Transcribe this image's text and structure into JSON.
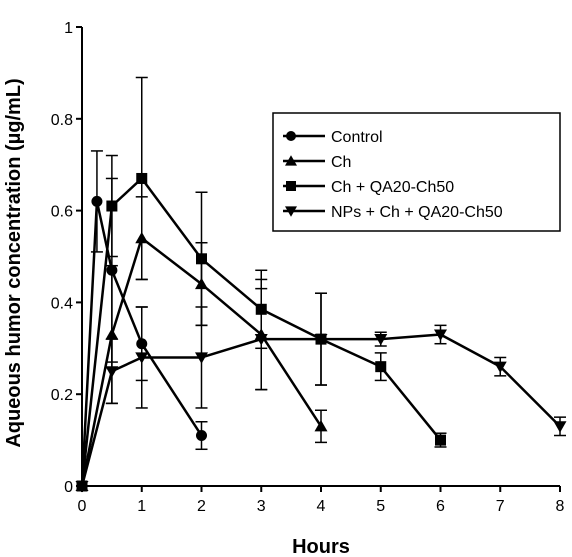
{
  "chart_data": {
    "type": "line",
    "title": "",
    "xlabel": "Hours",
    "ylabel": "Aqueous humor concentration (µg/mL)",
    "xlim": [
      0,
      8
    ],
    "ylim": [
      0,
      1
    ],
    "x_ticks": [
      0,
      1,
      2,
      3,
      4,
      5,
      6,
      7,
      8
    ],
    "y_ticks": [
      0,
      0.2,
      0.4,
      0.6,
      0.8,
      1
    ],
    "x_tick_labels": [
      "0",
      "1",
      "2",
      "3",
      "4",
      "5",
      "6",
      "7",
      "8"
    ],
    "y_tick_labels": [
      "0",
      "0.2",
      "0.4",
      "0.6",
      "0.8",
      "1"
    ],
    "grid": false,
    "legend_position": "top-right",
    "series": [
      {
        "name": "Control",
        "marker": "circle",
        "points": [
          {
            "x": 0,
            "y": 0,
            "err": 0
          },
          {
            "x": 0.25,
            "y": 0.62,
            "err": 0.11
          },
          {
            "x": 0.5,
            "y": 0.47,
            "err": 0.2
          },
          {
            "x": 1,
            "y": 0.31,
            "err": 0.08
          },
          {
            "x": 2,
            "y": 0.11,
            "err": 0.03
          }
        ]
      },
      {
        "name": "Ch",
        "marker": "triangle-up",
        "points": [
          {
            "x": 0,
            "y": 0,
            "err": 0
          },
          {
            "x": 0.5,
            "y": 0.33,
            "err": 0.15
          },
          {
            "x": 1,
            "y": 0.54,
            "err": 0.09
          },
          {
            "x": 2,
            "y": 0.44,
            "err": 0.09
          },
          {
            "x": 3,
            "y": 0.33,
            "err": 0.12
          },
          {
            "x": 4,
            "y": 0.13,
            "err": 0.035
          }
        ]
      },
      {
        "name": "Ch + QA20-Ch50",
        "marker": "square",
        "points": [
          {
            "x": 0,
            "y": 0,
            "err": 0
          },
          {
            "x": 0.5,
            "y": 0.61,
            "err": 0.11
          },
          {
            "x": 1,
            "y": 0.67,
            "err": 0.22
          },
          {
            "x": 2,
            "y": 0.495,
            "err": 0.145
          },
          {
            "x": 3,
            "y": 0.385,
            "err": 0.085
          },
          {
            "x": 4,
            "y": 0.32,
            "err": 0.1
          },
          {
            "x": 5,
            "y": 0.26,
            "err": 0.03
          },
          {
            "x": 6,
            "y": 0.1,
            "err": 0.015
          }
        ]
      },
      {
        "name": "NPs + Ch + QA20-Ch50",
        "marker": "triangle-down",
        "points": [
          {
            "x": 0,
            "y": 0,
            "err": 0
          },
          {
            "x": 0.5,
            "y": 0.25,
            "err": 0.07
          },
          {
            "x": 1,
            "y": 0.28,
            "err": 0.11
          },
          {
            "x": 2,
            "y": 0.28,
            "err": 0.11
          },
          {
            "x": 3,
            "y": 0.32,
            "err": 0.11
          },
          {
            "x": 4,
            "y": 0.32,
            "err": 0.1
          },
          {
            "x": 5,
            "y": 0.32,
            "err": 0.015
          },
          {
            "x": 6,
            "y": 0.33,
            "err": 0.02
          },
          {
            "x": 7,
            "y": 0.26,
            "err": 0.02
          },
          {
            "x": 8,
            "y": 0.13,
            "err": 0.02
          }
        ]
      }
    ]
  }
}
